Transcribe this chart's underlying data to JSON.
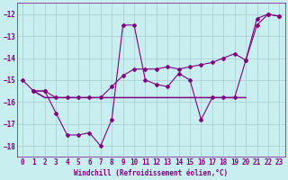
{
  "line1_x": [
    0,
    1,
    2,
    3,
    4,
    5,
    6,
    7,
    8,
    9,
    10,
    11,
    12,
    13,
    14,
    15,
    16,
    17,
    18,
    19,
    20,
    21,
    22,
    23
  ],
  "line1_y": [
    -15.0,
    -15.5,
    -15.5,
    -16.5,
    -17.5,
    -17.5,
    -17.4,
    -18.0,
    -16.8,
    -12.5,
    -12.5,
    -15.0,
    -15.2,
    -15.3,
    -14.7,
    -15.0,
    -16.8,
    -15.8,
    -15.8,
    -15.8,
    -14.1,
    -12.2,
    -12.0,
    -12.1
  ],
  "line2_x": [
    1,
    2,
    3,
    4,
    5,
    6,
    7,
    8,
    9,
    10,
    11,
    12,
    13,
    14,
    15,
    16,
    17,
    18,
    19,
    20,
    21,
    22,
    23
  ],
  "line2_y": [
    -15.5,
    -15.5,
    -15.8,
    -15.8,
    -15.8,
    -15.8,
    -15.8,
    -15.3,
    -14.8,
    -14.5,
    -14.5,
    -14.5,
    -14.4,
    -14.5,
    -14.4,
    -14.3,
    -14.2,
    -14.0,
    -13.8,
    -14.1,
    -12.5,
    -12.0,
    -12.1
  ],
  "line3_x": [
    1,
    2,
    3,
    4,
    5,
    6,
    7,
    8,
    9,
    10,
    11,
    12,
    13,
    14,
    15,
    16,
    17,
    18,
    19,
    20
  ],
  "line3_y": [
    -15.5,
    -15.8,
    -15.8,
    -15.8,
    -15.8,
    -15.8,
    -15.8,
    -15.8,
    -15.8,
    -15.8,
    -15.8,
    -15.8,
    -15.8,
    -15.8,
    -15.8,
    -15.8,
    -15.8,
    -15.8,
    -15.8,
    -15.8
  ],
  "line_color": "#800080",
  "background_color": "#c8eef0",
  "grid_color": "#b0d0d8",
  "xlabel": "Windchill (Refroidissement éolien,°C)",
  "xlim": [
    -0.5,
    23.5
  ],
  "ylim": [
    -18.5,
    -11.5
  ],
  "yticks": [
    -18,
    -17,
    -16,
    -15,
    -14,
    -13,
    -12
  ],
  "xticks": [
    0,
    1,
    2,
    3,
    4,
    5,
    6,
    7,
    8,
    9,
    10,
    11,
    12,
    13,
    14,
    15,
    16,
    17,
    18,
    19,
    20,
    21,
    22,
    23
  ],
  "marker": "D",
  "markersize": 2.0,
  "linewidth": 0.8,
  "xlabel_fontsize": 5.5,
  "tick_fontsize": 5.5,
  "tick_color": "#800080"
}
